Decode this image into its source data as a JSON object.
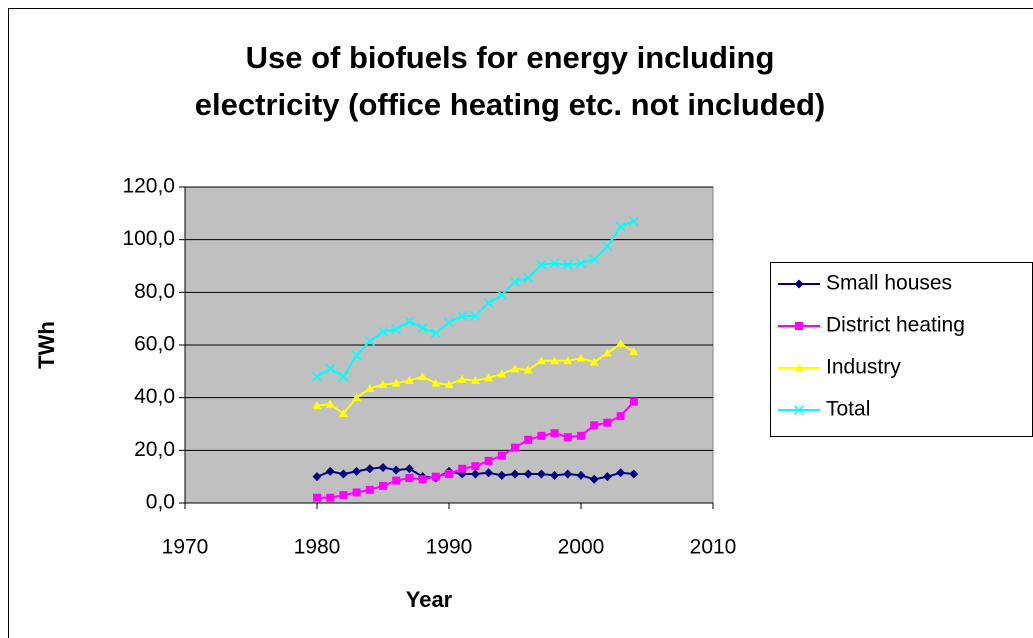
{
  "chart_data": {
    "type": "line",
    "title": "Use of biofuels for energy including electricity (office heating etc. not included)",
    "title_lines": [
      "Use of biofuels for energy including",
      "electricity (office heating etc. not included)"
    ],
    "x_label": "Year",
    "y_label": "TWh",
    "x": [
      1980,
      1981,
      1982,
      1983,
      1984,
      1985,
      1986,
      1987,
      1988,
      1989,
      1990,
      1991,
      1992,
      1993,
      1994,
      1995,
      1996,
      1997,
      1998,
      1999,
      2000,
      2001,
      2002,
      2003,
      2004
    ],
    "series": [
      {
        "name": "Small houses",
        "color": "#000080",
        "marker": "diamond",
        "values": [
          10,
          12,
          11,
          12,
          13,
          13.5,
          12.5,
          13,
          10,
          9.5,
          12,
          11,
          11,
          11.5,
          10.5,
          11,
          11,
          11,
          10.5,
          11,
          10.5,
          9,
          10,
          11.5,
          11
        ]
      },
      {
        "name": "District heating",
        "color": "#ff00ff",
        "marker": "square",
        "values": [
          2,
          2,
          3,
          4,
          5,
          6.5,
          8.5,
          9.5,
          9,
          10,
          11,
          13,
          14,
          16,
          18,
          21,
          24,
          25.5,
          26.5,
          25,
          25.5,
          29.5,
          30.5,
          33,
          38.5
        ]
      },
      {
        "name": "Industry",
        "color": "#ffff00",
        "marker": "triangle",
        "values": [
          37,
          37.5,
          34,
          40,
          43.5,
          45,
          45.5,
          46.5,
          48,
          45.5,
          45,
          47,
          46.5,
          47.5,
          49,
          51,
          50.5,
          54,
          54,
          54,
          55,
          53.5,
          57,
          60.5,
          57.5
        ]
      },
      {
        "name": "Total",
        "color": "#00ffff",
        "marker": "x",
        "values": [
          48,
          51,
          48,
          56,
          61.5,
          65,
          66,
          69,
          66.5,
          64.5,
          68.5,
          71,
          71,
          76,
          79,
          84,
          85.5,
          90.5,
          91,
          90.5,
          91,
          92.5,
          97.5,
          105,
          107
        ]
      }
    ],
    "xlim": [
      1970,
      2010
    ],
    "xticks": [
      1970,
      1980,
      1990,
      2000,
      2010
    ],
    "ylim": [
      0,
      120
    ],
    "yticks": [
      {
        "value": 0,
        "label": "0,0"
      },
      {
        "value": 20,
        "label": "20,0"
      },
      {
        "value": 40,
        "label": "40,0"
      },
      {
        "value": 60,
        "label": "60,0"
      },
      {
        "value": 80,
        "label": "80,0"
      },
      {
        "value": 100,
        "label": "100,0"
      },
      {
        "value": 120,
        "label": "120,0"
      }
    ],
    "grid": true,
    "legend": "right",
    "plot_background": "#c0c0c0"
  }
}
